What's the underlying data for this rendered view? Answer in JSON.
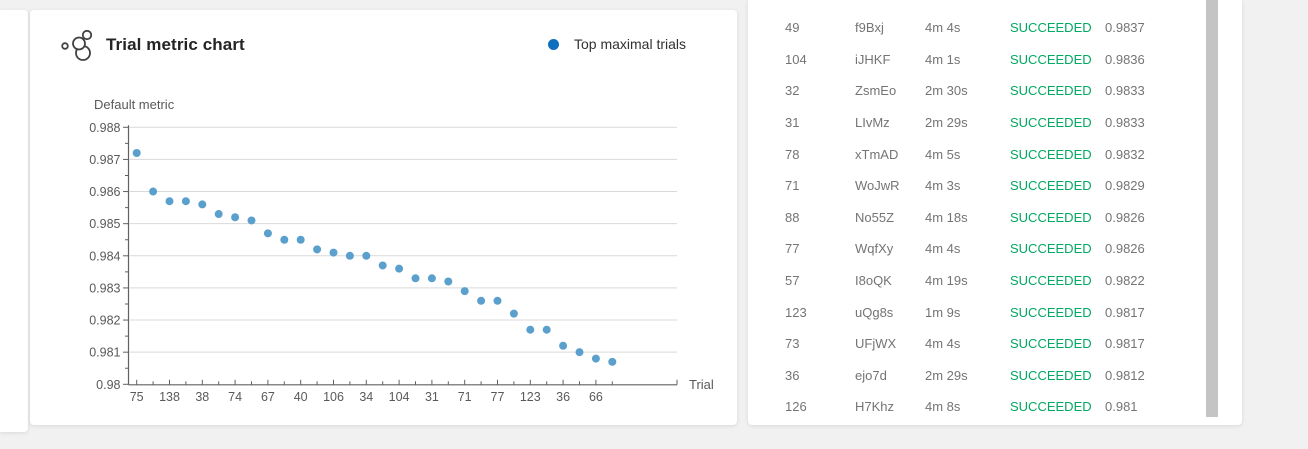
{
  "chart_card": {
    "title": "Trial metric chart",
    "icon": "bubble-chart-icon",
    "legend": {
      "label": "Top maximal trials",
      "color": "#106ebe"
    },
    "y_axis_title": "Default metric",
    "x_axis_title": "Trial"
  },
  "chart_data": {
    "type": "scatter",
    "title": "Trial metric chart",
    "xlabel": "Trial",
    "ylabel": "Default metric",
    "ylim": [
      0.98,
      0.988
    ],
    "y_tick_labels": [
      "0.988",
      "0.987",
      "0.986",
      "0.985",
      "0.984",
      "0.983",
      "0.982",
      "0.981",
      "0.98"
    ],
    "x_tick_labels": [
      "75",
      "138",
      "38",
      "74",
      "67",
      "40",
      "106",
      "34",
      "104",
      "31",
      "71",
      "77",
      "123",
      "36",
      "66"
    ],
    "x_tick_label_every_other_point": true,
    "grid": "horizontal",
    "legend_position": "top-right",
    "marker_color": "#5ba0cd",
    "series": [
      {
        "name": "Top maximal trials",
        "values": [
          0.9872,
          0.986,
          0.9857,
          0.9857,
          0.9856,
          0.9853,
          0.9852,
          0.9851,
          0.9847,
          0.9845,
          0.9845,
          0.9842,
          0.9841,
          0.984,
          0.984,
          0.9837,
          0.9836,
          0.9833,
          0.9833,
          0.9832,
          0.9829,
          0.9826,
          0.9826,
          0.9822,
          0.9817,
          0.9817,
          0.9812,
          0.981,
          0.9808,
          0.9807
        ]
      }
    ]
  },
  "trials_table": {
    "status_color": "#00a862",
    "rows": [
      {
        "trial": "49",
        "name": "f9Bxj",
        "duration": "4m 4s",
        "status": "SUCCEEDED",
        "metric": "0.9837"
      },
      {
        "trial": "104",
        "name": "iJHKF",
        "duration": "4m 1s",
        "status": "SUCCEEDED",
        "metric": "0.9836"
      },
      {
        "trial": "32",
        "name": "ZsmEo",
        "duration": "2m 30s",
        "status": "SUCCEEDED",
        "metric": "0.9833"
      },
      {
        "trial": "31",
        "name": "LIvMz",
        "duration": "2m 29s",
        "status": "SUCCEEDED",
        "metric": "0.9833"
      },
      {
        "trial": "78",
        "name": "xTmAD",
        "duration": "4m 5s",
        "status": "SUCCEEDED",
        "metric": "0.9832"
      },
      {
        "trial": "71",
        "name": "WoJwR",
        "duration": "4m 3s",
        "status": "SUCCEEDED",
        "metric": "0.9829"
      },
      {
        "trial": "88",
        "name": "No55Z",
        "duration": "4m 18s",
        "status": "SUCCEEDED",
        "metric": "0.9826"
      },
      {
        "trial": "77",
        "name": "WqfXy",
        "duration": "4m 4s",
        "status": "SUCCEEDED",
        "metric": "0.9826"
      },
      {
        "trial": "57",
        "name": "I8oQK",
        "duration": "4m 19s",
        "status": "SUCCEEDED",
        "metric": "0.9822"
      },
      {
        "trial": "123",
        "name": "uQg8s",
        "duration": "1m 9s",
        "status": "SUCCEEDED",
        "metric": "0.9817"
      },
      {
        "trial": "73",
        "name": "UFjWX",
        "duration": "4m 4s",
        "status": "SUCCEEDED",
        "metric": "0.9817"
      },
      {
        "trial": "36",
        "name": "ejo7d",
        "duration": "2m 29s",
        "status": "SUCCEEDED",
        "metric": "0.9812"
      },
      {
        "trial": "126",
        "name": "H7Khz",
        "duration": "4m 8s",
        "status": "SUCCEEDED",
        "metric": "0.981"
      }
    ]
  }
}
